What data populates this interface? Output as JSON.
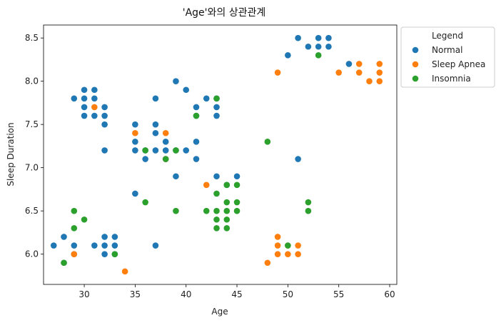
{
  "chart_data": {
    "type": "scatter",
    "title": "'Age'와의 상관관계",
    "xlabel": "Age",
    "ylabel": "Sleep Duration",
    "xlim": [
      26,
      60.7
    ],
    "ylim": [
      5.65,
      8.65
    ],
    "xticks": [
      30,
      35,
      40,
      45,
      50,
      55,
      60
    ],
    "yticks": [
      6.0,
      6.5,
      7.0,
      7.5,
      8.0,
      8.5
    ],
    "grid": false,
    "legend": {
      "title": "Legend",
      "placement": "outside-top-right"
    },
    "series": [
      {
        "name": "Normal",
        "color": "#1f77b4",
        "points": [
          [
            27,
            6.1
          ],
          [
            28,
            6.2
          ],
          [
            28,
            5.9
          ],
          [
            29,
            6.0
          ],
          [
            29,
            6.1
          ],
          [
            29,
            7.8
          ],
          [
            30,
            7.8
          ],
          [
            30,
            7.9
          ],
          [
            30,
            7.7
          ],
          [
            30,
            7.6
          ],
          [
            31,
            7.9
          ],
          [
            31,
            7.8
          ],
          [
            31,
            7.6
          ],
          [
            31,
            6.1
          ],
          [
            32,
            7.7
          ],
          [
            32,
            7.6
          ],
          [
            32,
            7.5
          ],
          [
            32,
            7.2
          ],
          [
            32,
            6.2
          ],
          [
            32,
            6.1
          ],
          [
            32,
            6.0
          ],
          [
            33,
            6.2
          ],
          [
            33,
            6.1
          ],
          [
            33,
            6.0
          ],
          [
            35,
            7.5
          ],
          [
            35,
            7.3
          ],
          [
            35,
            7.2
          ],
          [
            35,
            6.7
          ],
          [
            36,
            7.2
          ],
          [
            36,
            7.1
          ],
          [
            37,
            7.8
          ],
          [
            37,
            7.5
          ],
          [
            37,
            7.4
          ],
          [
            37,
            7.2
          ],
          [
            37,
            6.1
          ],
          [
            38,
            7.3
          ],
          [
            38,
            7.2
          ],
          [
            38,
            7.1
          ],
          [
            39,
            8.0
          ],
          [
            39,
            7.2
          ],
          [
            39,
            6.9
          ],
          [
            40,
            7.9
          ],
          [
            40,
            7.2
          ],
          [
            41,
            7.7
          ],
          [
            41,
            7.6
          ],
          [
            41,
            7.3
          ],
          [
            41,
            7.1
          ],
          [
            42,
            7.8
          ],
          [
            43,
            7.8
          ],
          [
            43,
            7.7
          ],
          [
            43,
            7.6
          ],
          [
            43,
            6.9
          ],
          [
            44,
            6.8
          ],
          [
            45,
            6.9
          ],
          [
            50,
            8.3
          ],
          [
            51,
            8.5
          ],
          [
            51,
            7.1
          ],
          [
            52,
            8.4
          ],
          [
            53,
            8.5
          ],
          [
            53,
            8.4
          ],
          [
            54,
            8.5
          ],
          [
            54,
            8.4
          ],
          [
            56,
            8.2
          ]
        ]
      },
      {
        "name": "Sleep Apnea",
        "color": "#ff7f0e",
        "points": [
          [
            29,
            6.0
          ],
          [
            31,
            7.7
          ],
          [
            34,
            5.8
          ],
          [
            35,
            7.4
          ],
          [
            38,
            7.4
          ],
          [
            38,
            7.1
          ],
          [
            42,
            6.8
          ],
          [
            48,
            5.9
          ],
          [
            49,
            8.1
          ],
          [
            49,
            6.2
          ],
          [
            49,
            6.1
          ],
          [
            49,
            6.0
          ],
          [
            50,
            6.1
          ],
          [
            50,
            6.0
          ],
          [
            51,
            6.1
          ],
          [
            51,
            6.0
          ],
          [
            55,
            8.1
          ],
          [
            57,
            8.2
          ],
          [
            57,
            8.1
          ],
          [
            58,
            8.0
          ],
          [
            59,
            8.2
          ],
          [
            59,
            8.1
          ],
          [
            59,
            8.0
          ]
        ]
      },
      {
        "name": "Insomnia",
        "color": "#2ca02c",
        "points": [
          [
            28,
            5.9
          ],
          [
            29,
            6.5
          ],
          [
            29,
            6.3
          ],
          [
            30,
            6.4
          ],
          [
            33,
            6.0
          ],
          [
            36,
            7.2
          ],
          [
            36,
            6.6
          ],
          [
            38,
            7.1
          ],
          [
            39,
            7.2
          ],
          [
            39,
            6.5
          ],
          [
            41,
            7.6
          ],
          [
            42,
            6.5
          ],
          [
            43,
            7.8
          ],
          [
            43,
            6.7
          ],
          [
            43,
            6.5
          ],
          [
            43,
            6.4
          ],
          [
            43,
            6.3
          ],
          [
            44,
            6.8
          ],
          [
            44,
            6.6
          ],
          [
            44,
            6.5
          ],
          [
            44,
            6.4
          ],
          [
            44,
            6.3
          ],
          [
            45,
            6.8
          ],
          [
            45,
            6.6
          ],
          [
            45,
            6.5
          ],
          [
            48,
            7.3
          ],
          [
            50,
            6.1
          ],
          [
            52,
            6.6
          ],
          [
            52,
            6.5
          ],
          [
            53,
            8.3
          ]
        ]
      }
    ]
  }
}
